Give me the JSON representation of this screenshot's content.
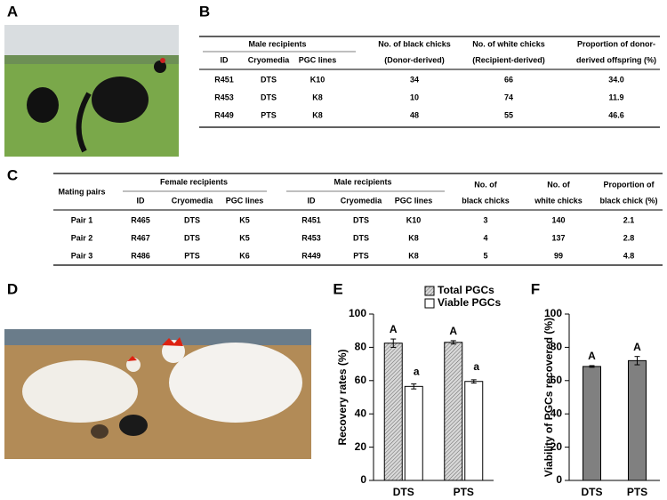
{
  "panel_labels": [
    "A",
    "B",
    "C",
    "D",
    "E",
    "F"
  ],
  "table_b": {
    "group_header": "Male recipients",
    "sub_headers": [
      "ID",
      "Cryomedia",
      "PGC lines"
    ],
    "headers": [
      [
        "No. of black chicks",
        "(Donor-derived)"
      ],
      [
        "No. of white chicks",
        "(Recipient-derived)"
      ],
      [
        "Proportion of donor-",
        "derived offspring (%)"
      ]
    ],
    "rows": [
      [
        "R451",
        "DTS",
        "K10",
        "34",
        "66",
        "34.0"
      ],
      [
        "R453",
        "DTS",
        "K8",
        "10",
        "74",
        "11.9"
      ],
      [
        "R449",
        "PTS",
        "K8",
        "48",
        "55",
        "46.6"
      ]
    ]
  },
  "table_c": {
    "corner_header": "Mating pairs",
    "groups": [
      "Female recipients",
      "Male recipients"
    ],
    "sub_headers": [
      [
        "ID",
        "Cryomedia",
        "PGC lines"
      ],
      [
        "ID",
        "Cryomedia",
        "PGC lines"
      ]
    ],
    "headers": [
      [
        "No. of",
        "black chicks"
      ],
      [
        "No. of",
        "white chicks"
      ],
      [
        "Proportion of",
        "black chick (%)"
      ]
    ],
    "rows": [
      [
        "Pair 1",
        "R465",
        "DTS",
        "K5",
        "R451",
        "DTS",
        "K10",
        "3",
        "140",
        "2.1"
      ],
      [
        "Pair 2",
        "R467",
        "DTS",
        "K5",
        "R453",
        "DTS",
        "K8",
        "4",
        "137",
        "2.8"
      ],
      [
        "Pair 3",
        "R486",
        "PTS",
        "K6",
        "R449",
        "PTS",
        "K8",
        "5",
        "99",
        "4.8"
      ]
    ]
  },
  "chart_data": [
    {
      "type": "bar",
      "ylabel": "Recovery rates (%)",
      "categories": [
        "DTS",
        "PTS"
      ],
      "ylim": [
        0,
        100
      ],
      "yticks": [
        0,
        20,
        40,
        60,
        80,
        100
      ],
      "series": [
        {
          "name": "Total PGCs",
          "color": "#c8c8c8",
          "hatch": true,
          "values": [
            82.5,
            83
          ],
          "errors": [
            2.5,
            1
          ],
          "letters": [
            "A",
            "A"
          ]
        },
        {
          "name": "Viable PGCs",
          "color": "#ffffff",
          "hatch": false,
          "values": [
            56.5,
            59.5
          ],
          "errors": [
            1.5,
            1
          ],
          "letters": [
            "a",
            "a"
          ]
        }
      ]
    },
    {
      "type": "bar",
      "ylabel": "Viability of PGCs recovered (%)",
      "categories": [
        "DTS",
        "PTS"
      ],
      "ylim": [
        0,
        100
      ],
      "yticks": [
        0,
        20,
        40,
        60,
        80,
        100
      ],
      "series": [
        {
          "color": "#808080",
          "hatch": false,
          "values": [
            68.5,
            72
          ],
          "errors": [
            0.5,
            2.5
          ],
          "letters": [
            "A",
            "A"
          ]
        }
      ]
    }
  ]
}
